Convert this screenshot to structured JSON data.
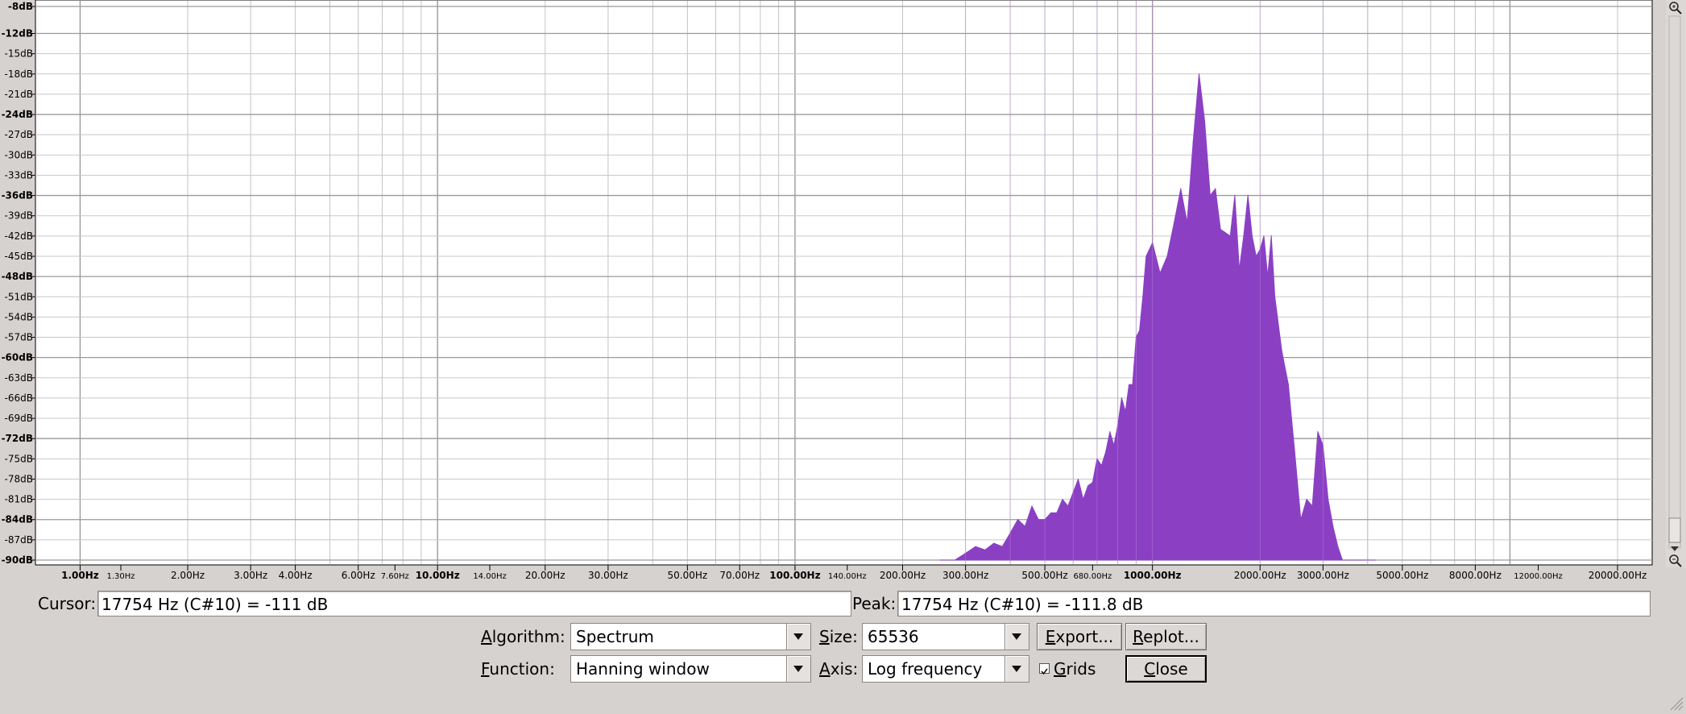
{
  "chart_data": {
    "type": "area",
    "xscale": "log",
    "xlim": [
      0.75,
      25000
    ],
    "ylim": [
      -90,
      -8
    ],
    "xlabel": "",
    "ylabel": "",
    "title": "",
    "grid": true,
    "fill_color": "#8b40c4",
    "yticks_major": [
      "-12dB",
      "-24dB",
      "-36dB",
      "-48dB",
      "-60dB",
      "-72dB",
      "-84dB"
    ],
    "yticks": [
      {
        "v": -8,
        "label": "-8dB",
        "bold": true
      },
      {
        "v": -12,
        "label": "-12dB",
        "bold": true
      },
      {
        "v": -15,
        "label": "-15dB",
        "bold": false
      },
      {
        "v": -18,
        "label": "-18dB",
        "bold": false
      },
      {
        "v": -21,
        "label": "-21dB",
        "bold": false
      },
      {
        "v": -24,
        "label": "-24dB",
        "bold": true
      },
      {
        "v": -27,
        "label": "-27dB",
        "bold": false
      },
      {
        "v": -30,
        "label": "-30dB",
        "bold": false
      },
      {
        "v": -33,
        "label": "-33dB",
        "bold": false
      },
      {
        "v": -36,
        "label": "-36dB",
        "bold": true
      },
      {
        "v": -39,
        "label": "-39dB",
        "bold": false
      },
      {
        "v": -42,
        "label": "-42dB",
        "bold": false
      },
      {
        "v": -45,
        "label": "-45dB",
        "bold": false
      },
      {
        "v": -48,
        "label": "-48dB",
        "bold": true
      },
      {
        "v": -51,
        "label": "-51dB",
        "bold": false
      },
      {
        "v": -54,
        "label": "-54dB",
        "bold": false
      },
      {
        "v": -57,
        "label": "-57dB",
        "bold": false
      },
      {
        "v": -60,
        "label": "-60dB",
        "bold": true
      },
      {
        "v": -63,
        "label": "-63dB",
        "bold": false
      },
      {
        "v": -66,
        "label": "-66dB",
        "bold": false
      },
      {
        "v": -69,
        "label": "-69dB",
        "bold": false
      },
      {
        "v": -72,
        "label": "-72dB",
        "bold": true
      },
      {
        "v": -75,
        "label": "-75dB",
        "bold": false
      },
      {
        "v": -78,
        "label": "-78dB",
        "bold": false
      },
      {
        "v": -81,
        "label": "-81dB",
        "bold": false
      },
      {
        "v": -84,
        "label": "-84dB",
        "bold": true
      },
      {
        "v": -87,
        "label": "-87dB",
        "bold": false
      },
      {
        "v": -90,
        "label": "-90dB",
        "bold": true
      }
    ],
    "xticks": [
      {
        "v": 1,
        "label": "1.00Hz",
        "kind": "bold"
      },
      {
        "v": 1.3,
        "label": "1.30Hz",
        "kind": "small"
      },
      {
        "v": 2,
        "label": "2.00Hz",
        "kind": "normal"
      },
      {
        "v": 3,
        "label": "3.00Hz",
        "kind": "normal"
      },
      {
        "v": 4,
        "label": "4.00Hz",
        "kind": "normal"
      },
      {
        "v": 6,
        "label": "6.00Hz",
        "kind": "normal"
      },
      {
        "v": 7.6,
        "label": "7.60Hz",
        "kind": "small"
      },
      {
        "v": 10,
        "label": "10.00Hz",
        "kind": "bold"
      },
      {
        "v": 14,
        "label": "14.00Hz",
        "kind": "small"
      },
      {
        "v": 20,
        "label": "20.00Hz",
        "kind": "normal"
      },
      {
        "v": 30,
        "label": "30.00Hz",
        "kind": "normal"
      },
      {
        "v": 50,
        "label": "50.00Hz",
        "kind": "normal"
      },
      {
        "v": 70,
        "label": "70.00Hz",
        "kind": "normal"
      },
      {
        "v": 100,
        "label": "100.00Hz",
        "kind": "bold"
      },
      {
        "v": 140,
        "label": "140.00Hz",
        "kind": "small"
      },
      {
        "v": 200,
        "label": "200.00Hz",
        "kind": "normal"
      },
      {
        "v": 300,
        "label": "300.00Hz",
        "kind": "normal"
      },
      {
        "v": 500,
        "label": "500.00Hz",
        "kind": "normal"
      },
      {
        "v": 680,
        "label": "680.00Hz",
        "kind": "small"
      },
      {
        "v": 1000,
        "label": "1000.00Hz",
        "kind": "bold"
      },
      {
        "v": 2000,
        "label": "2000.00Hz",
        "kind": "normal"
      },
      {
        "v": 3000,
        "label": "3000.00Hz",
        "kind": "normal"
      },
      {
        "v": 5000,
        "label": "5000.00Hz",
        "kind": "normal"
      },
      {
        "v": 8000,
        "label": "8000.00Hz",
        "kind": "normal"
      },
      {
        "v": 12000,
        "label": "12000.00Hz",
        "kind": "small"
      },
      {
        "v": 20000,
        "label": "20000.00Hz",
        "kind": "normal"
      }
    ],
    "series": [
      {
        "x": [
          255,
          280,
          300,
          320,
          340,
          360,
          380,
          400,
          420,
          440,
          460,
          480,
          500,
          520,
          540,
          560,
          580,
          600,
          620,
          640,
          660,
          680,
          700,
          720,
          740,
          760,
          780,
          800,
          820,
          840,
          860,
          880,
          900,
          920,
          940,
          960,
          980,
          1000,
          1050,
          1100,
          1150,
          1200,
          1250,
          1300,
          1350,
          1400,
          1450,
          1500,
          1550,
          1600,
          1650,
          1700,
          1750,
          1800,
          1850,
          1900,
          1950,
          2000,
          2050,
          2100,
          2150,
          2200,
          2300,
          2400,
          2500,
          2600,
          2700,
          2800,
          2900,
          3000,
          3100,
          3200,
          3300,
          3400,
          3500,
          3600,
          3700,
          3800,
          3900,
          4000,
          4200
        ],
        "y": [
          -90,
          -90,
          -89,
          -88,
          -88.5,
          -87.5,
          -88,
          -86,
          -84,
          -85,
          -82,
          -84,
          -84,
          -83,
          -83,
          -81,
          -82,
          -80,
          -78,
          -81,
          -79,
          -78.5,
          -75,
          -76,
          -74,
          -71,
          -73,
          -70,
          -66,
          -68,
          -64,
          -64,
          -57,
          -56,
          -51,
          -45,
          -44,
          -43,
          -47.5,
          -45,
          -40,
          -35,
          -40,
          -28,
          -18,
          -25,
          -36,
          -35,
          -41,
          -41.5,
          -42,
          -36,
          -47,
          -42,
          -36,
          -42,
          -45,
          -44,
          -42,
          -48,
          -42,
          -51,
          -59,
          -64,
          -74,
          -84,
          -81,
          -82,
          -71,
          -73,
          -81,
          -85,
          -88,
          -90,
          -90,
          -90,
          -90,
          -90,
          -90,
          -90,
          -90
        ]
      }
    ]
  },
  "controls": {
    "cursor_label": "Cursor:",
    "cursor_value": "17754 Hz (C#10) = -111 dB",
    "peak_label": "Peak:",
    "peak_value": "17754 Hz (C#10) = -111.8 dB",
    "algorithm_label": "Algorithm:",
    "algorithm_value": "Spectrum",
    "size_label": "Size:",
    "size_value": "65536",
    "function_label": "Function:",
    "function_value": "Hanning window",
    "axis_label": "Axis:",
    "axis_value": "Log frequency",
    "grids_label": "Grids",
    "grids_checked": true,
    "export_label": "Export...",
    "replot_label": "Replot...",
    "close_label": "Close"
  }
}
